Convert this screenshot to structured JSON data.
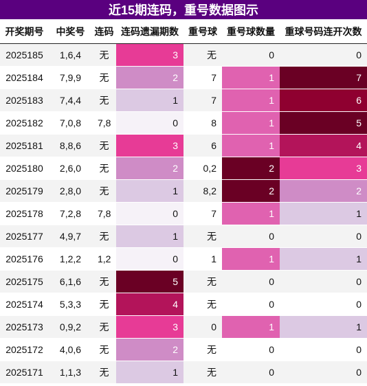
{
  "title": "近15期连码，重号数据图示",
  "headers": [
    "开奖期号",
    "中奖号",
    "连码",
    "连码遗漏期数",
    "重号球",
    "重号球数量",
    "重球号码连开次数"
  ],
  "colors": {
    "title_bg": "#5a007f",
    "scale": {
      "0": "#f6f2f8",
      "1": "#dcc9e3",
      "2": "#cf8cc6",
      "3": "#e73b96",
      "4": "#b3145a",
      "5": "#6a0024",
      "6": "#8f0030",
      "7": "#6a0024"
    },
    "dup_count": {
      "0": "#f6f2f8",
      "1": "#e062b0",
      "2": "#6a0024"
    }
  },
  "rows": [
    {
      "period": "2025185",
      "numbers": "1,6,4",
      "lian": "无",
      "miss": "3",
      "dup": "无",
      "dup_count": "0",
      "streak": "0"
    },
    {
      "period": "2025184",
      "numbers": "7,9,9",
      "lian": "无",
      "miss": "2",
      "dup": "7",
      "dup_count": "1",
      "streak": "7"
    },
    {
      "period": "2025183",
      "numbers": "7,4,4",
      "lian": "无",
      "miss": "1",
      "dup": "7",
      "dup_count": "1",
      "streak": "6"
    },
    {
      "period": "2025182",
      "numbers": "7,0,8",
      "lian": "7,8",
      "miss": "0",
      "dup": "8",
      "dup_count": "1",
      "streak": "5"
    },
    {
      "period": "2025181",
      "numbers": "8,8,6",
      "lian": "无",
      "miss": "3",
      "dup": "6",
      "dup_count": "1",
      "streak": "4"
    },
    {
      "period": "2025180",
      "numbers": "2,6,0",
      "lian": "无",
      "miss": "2",
      "dup": "0,2",
      "dup_count": "2",
      "streak": "3"
    },
    {
      "period": "2025179",
      "numbers": "2,8,0",
      "lian": "无",
      "miss": "1",
      "dup": "8,2",
      "dup_count": "2",
      "streak": "2"
    },
    {
      "period": "2025178",
      "numbers": "7,2,8",
      "lian": "7,8",
      "miss": "0",
      "dup": "7",
      "dup_count": "1",
      "streak": "1"
    },
    {
      "period": "2025177",
      "numbers": "4,9,7",
      "lian": "无",
      "miss": "1",
      "dup": "无",
      "dup_count": "0",
      "streak": "0"
    },
    {
      "period": "2025176",
      "numbers": "1,2,2",
      "lian": "1,2",
      "miss": "0",
      "dup": "1",
      "dup_count": "1",
      "streak": "1"
    },
    {
      "period": "2025175",
      "numbers": "6,1,6",
      "lian": "无",
      "miss": "5",
      "dup": "无",
      "dup_count": "0",
      "streak": "0"
    },
    {
      "period": "2025174",
      "numbers": "5,3,3",
      "lian": "无",
      "miss": "4",
      "dup": "无",
      "dup_count": "0",
      "streak": "0"
    },
    {
      "period": "2025173",
      "numbers": "0,9,2",
      "lian": "无",
      "miss": "3",
      "dup": "0",
      "dup_count": "1",
      "streak": "1"
    },
    {
      "period": "2025172",
      "numbers": "4,0,6",
      "lian": "无",
      "miss": "2",
      "dup": "无",
      "dup_count": "0",
      "streak": "0"
    },
    {
      "period": "2025171",
      "numbers": "1,1,3",
      "lian": "无",
      "miss": "1",
      "dup": "无",
      "dup_count": "0",
      "streak": "0"
    }
  ]
}
